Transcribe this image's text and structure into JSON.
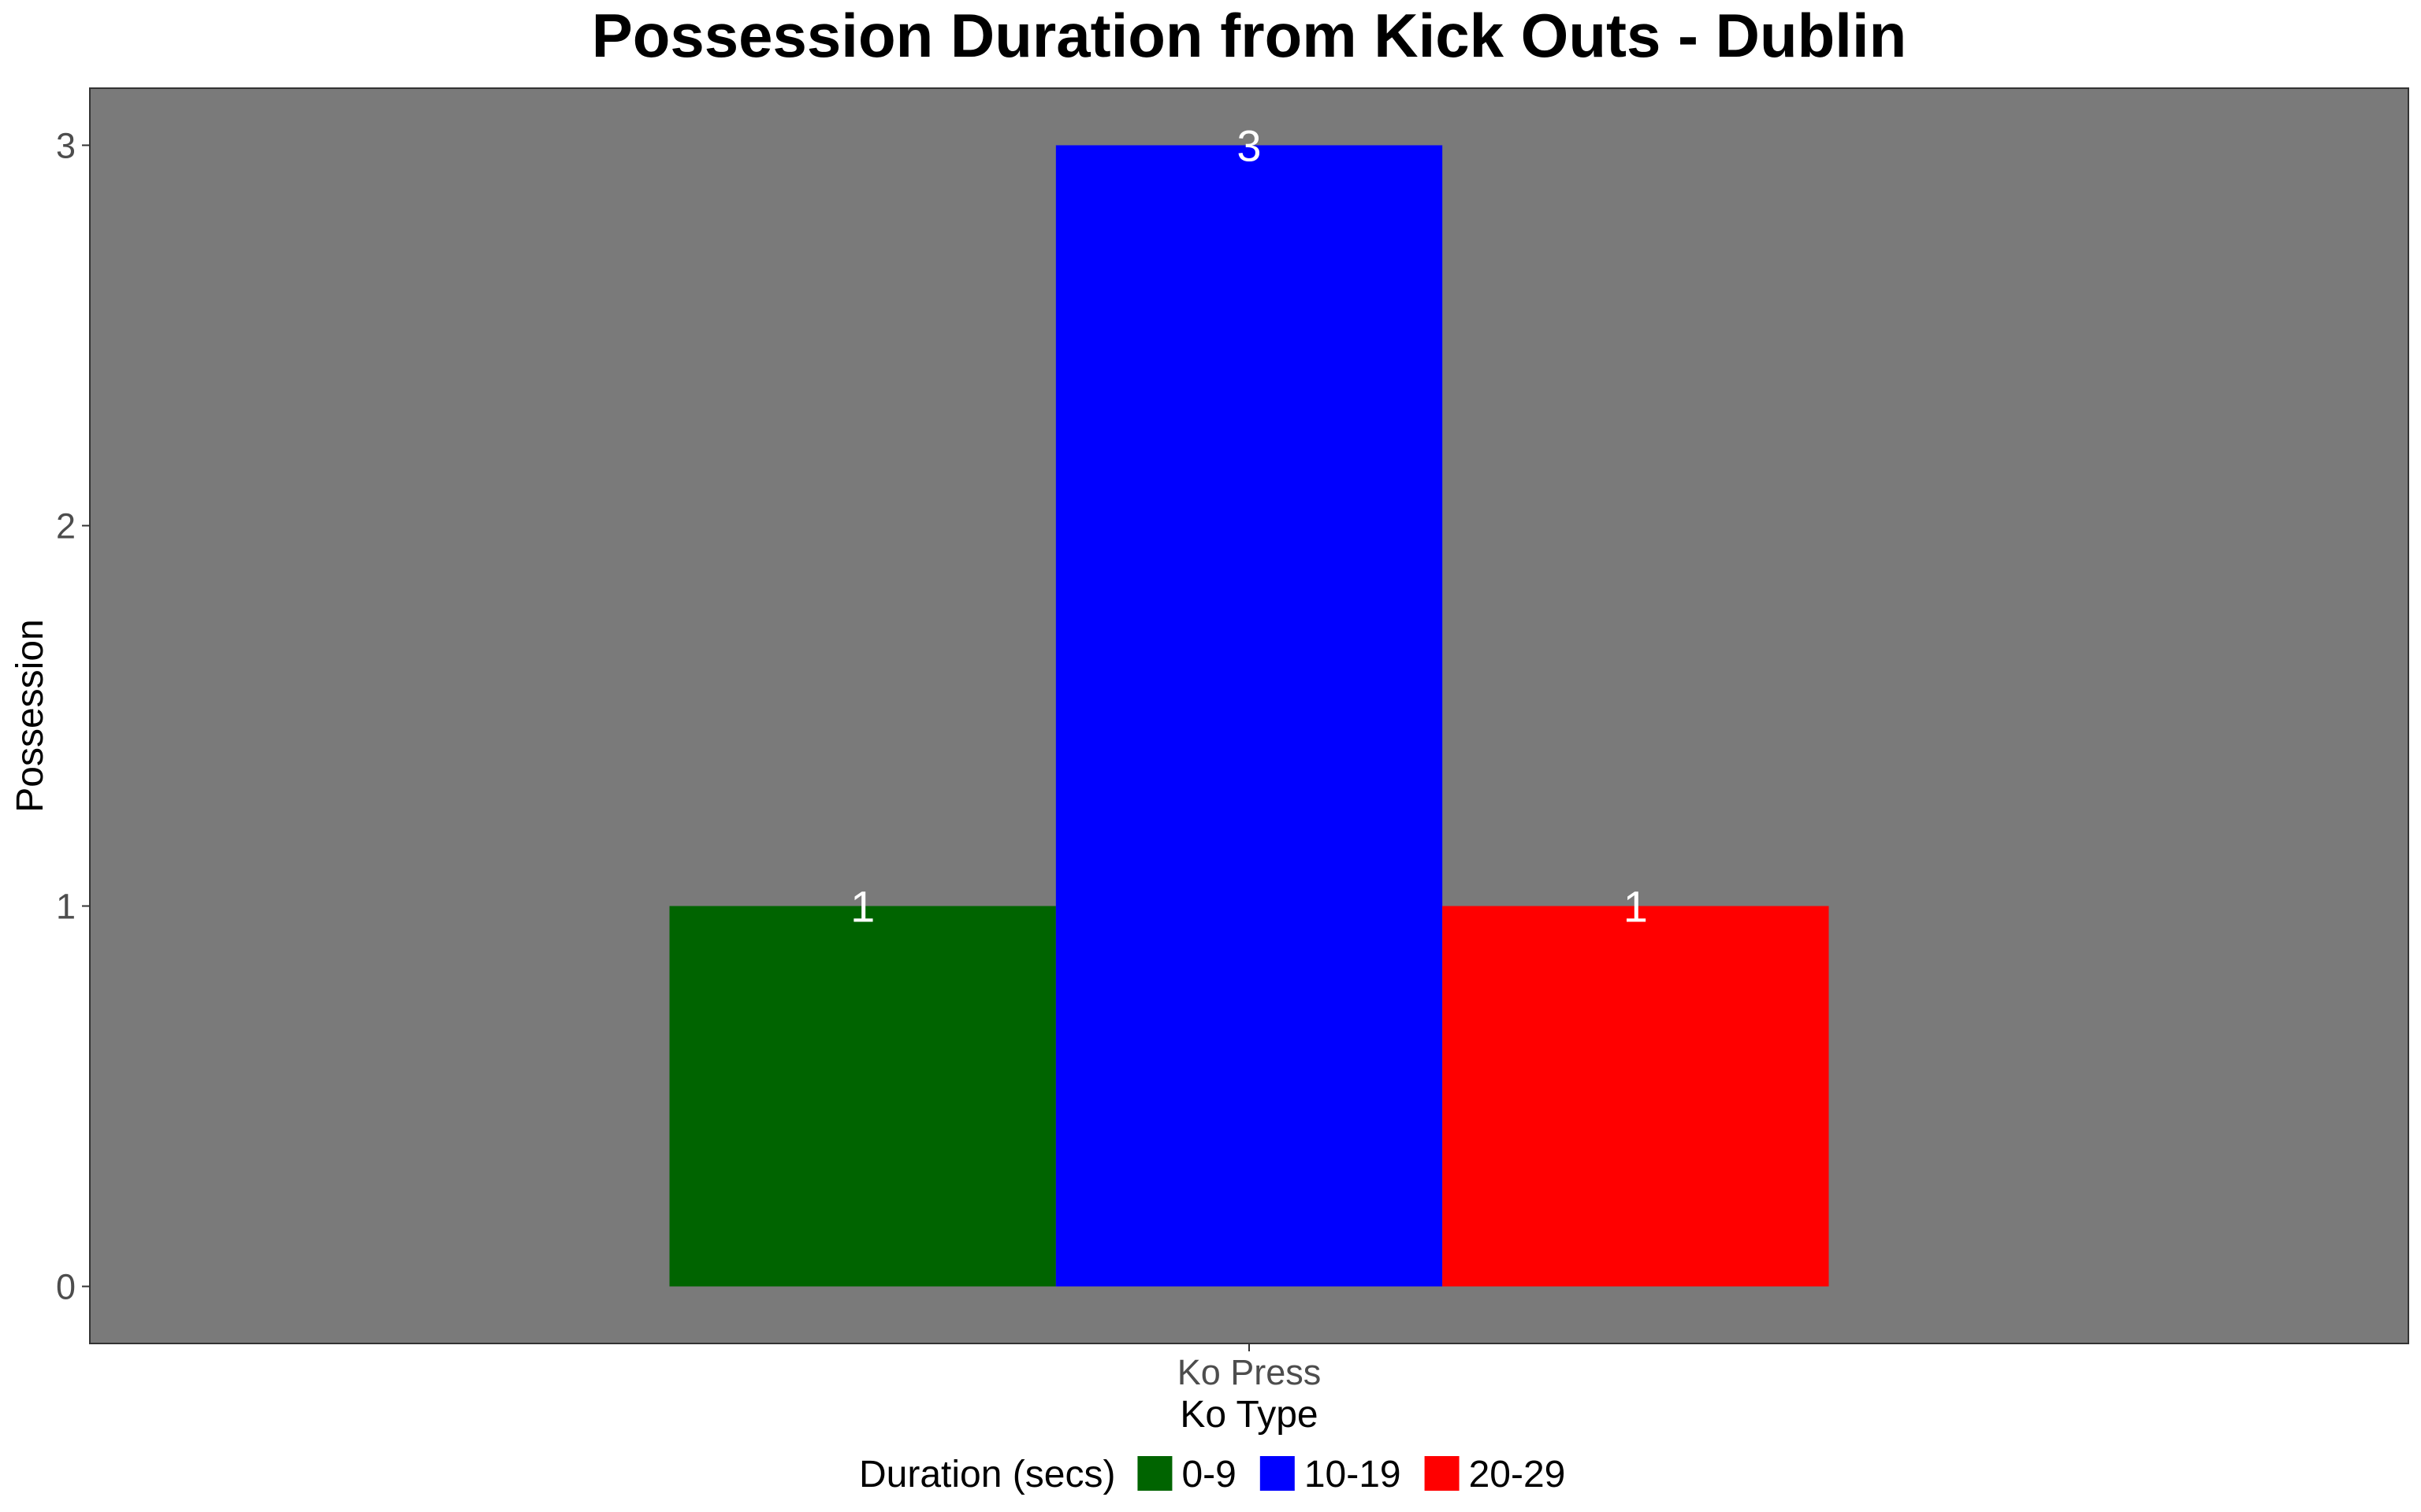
{
  "chart_data": {
    "type": "bar",
    "title": "Possession Duration from Kick Outs - Dublin",
    "xlabel": "Ko Type",
    "ylabel": "Possession",
    "categories": [
      "Ko Press"
    ],
    "ylim": [
      -0.15,
      3.15
    ],
    "yticks": [
      0,
      1,
      2,
      3
    ],
    "grid": false,
    "panel_background": "#7a7a7a",
    "legend": {
      "title": "Duration (secs)",
      "placement": "bottom"
    },
    "series": [
      {
        "name": "0-9",
        "color": "#006400",
        "values": [
          1
        ]
      },
      {
        "name": "10-19",
        "color": "#0000ff",
        "values": [
          3
        ]
      },
      {
        "name": "20-29",
        "color": "#ff0000",
        "values": [
          1
        ]
      }
    ]
  }
}
